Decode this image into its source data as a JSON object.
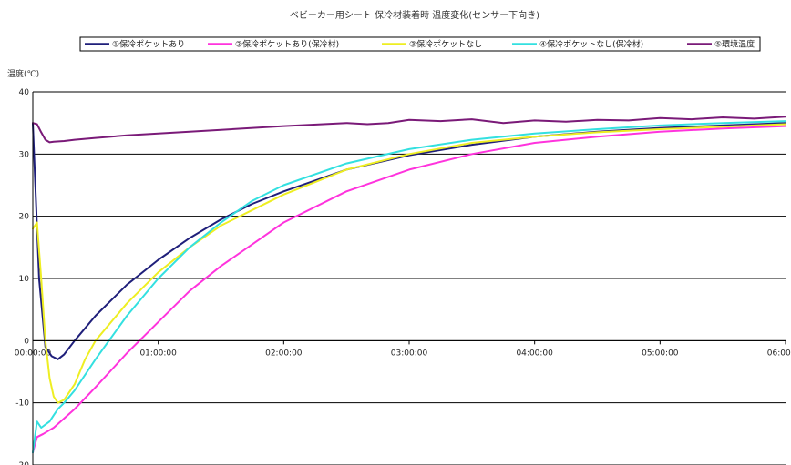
{
  "chart_data": {
    "type": "line",
    "title": "ベビーカー用シート 保冷材装着時 温度変化(センサー下向き)",
    "xlabel": "",
    "ylabel": "温度(℃)",
    "xlim": [
      0,
      360
    ],
    "ylim": [
      -20,
      40
    ],
    "y_ticks": [
      -20,
      -10,
      0,
      10,
      20,
      30,
      40
    ],
    "y_tick_labels": [
      "-20",
      "-10",
      "0",
      "10",
      "20",
      "30",
      "40"
    ],
    "x_ticks": [
      0,
      60,
      120,
      180,
      240,
      300,
      360
    ],
    "x_tick_labels": [
      "00:00:00",
      "01:00:00",
      "02:00:00",
      "03:00:00",
      "04:00:00",
      "05:00:00",
      "06:00:00"
    ],
    "grid": "horizontal",
    "legend_position": "top",
    "series": [
      {
        "name": "①保冷ポケットあり",
        "color": "#1f1f7a",
        "x": [
          0,
          3,
          6,
          9,
          12,
          15,
          20,
          30,
          45,
          60,
          75,
          90,
          105,
          120,
          150,
          180,
          210,
          240,
          270,
          300,
          330,
          360
        ],
        "y": [
          35,
          10,
          -1,
          -2.5,
          -3,
          -2.2,
          0,
          4,
          9,
          13,
          16.5,
          19.5,
          22,
          24,
          27.5,
          29.8,
          31.5,
          32.8,
          33.6,
          34.2,
          34.6,
          35
        ]
      },
      {
        "name": "②保冷ポケットあり(保冷材)",
        "color": "#ff33dd",
        "x": [
          0,
          2,
          5,
          10,
          20,
          30,
          45,
          60,
          75,
          90,
          105,
          120,
          150,
          180,
          210,
          240,
          270,
          300,
          330,
          360
        ],
        "y": [
          -18,
          -15.5,
          -15,
          -14,
          -11,
          -7.5,
          -2,
          3,
          8,
          12,
          15.5,
          19,
          24,
          27.5,
          30,
          31.8,
          32.8,
          33.6,
          34.1,
          34.5
        ]
      },
      {
        "name": "③保冷ポケットなし",
        "color": "#eeee22",
        "x": [
          0,
          2,
          4,
          6,
          8,
          10,
          12,
          15,
          20,
          25,
          30,
          45,
          60,
          75,
          90,
          105,
          120,
          150,
          180,
          210,
          240,
          270,
          300,
          330,
          360
        ],
        "y": [
          18,
          19,
          10,
          0,
          -6,
          -9,
          -10,
          -9.5,
          -7,
          -3,
          0,
          6,
          11,
          15,
          18.5,
          21,
          23.5,
          27.5,
          30,
          31.8,
          32.8,
          33.5,
          34,
          34.4,
          34.8
        ]
      },
      {
        "name": "④保冷ポケットなし(保冷材)",
        "color": "#33e0e0",
        "x": [
          0,
          2,
          4,
          6,
          8,
          10,
          12,
          15,
          20,
          30,
          45,
          60,
          75,
          90,
          105,
          120,
          150,
          180,
          210,
          240,
          270,
          300,
          330,
          360
        ],
        "y": [
          -18,
          -13,
          -14,
          -13.5,
          -13,
          -12,
          -11,
          -10,
          -8,
          -3,
          4,
          10,
          15,
          19,
          22.5,
          25,
          28.5,
          30.8,
          32.3,
          33.3,
          34,
          34.6,
          35,
          35.3
        ]
      },
      {
        "name": "⑤環境温度",
        "color": "#7a1a78",
        "x": [
          0,
          2,
          4,
          6,
          8,
          10,
          15,
          20,
          30,
          45,
          60,
          90,
          120,
          150,
          160,
          170,
          180,
          195,
          210,
          225,
          240,
          255,
          270,
          285,
          300,
          315,
          330,
          345,
          360
        ],
        "y": [
          35,
          34.8,
          33.5,
          32.3,
          31.9,
          32,
          32.1,
          32.3,
          32.6,
          33,
          33.3,
          33.9,
          34.5,
          35,
          34.8,
          35,
          35.5,
          35.3,
          35.6,
          35,
          35.4,
          35.2,
          35.5,
          35.4,
          35.8,
          35.6,
          35.9,
          35.7,
          36
        ]
      }
    ]
  }
}
